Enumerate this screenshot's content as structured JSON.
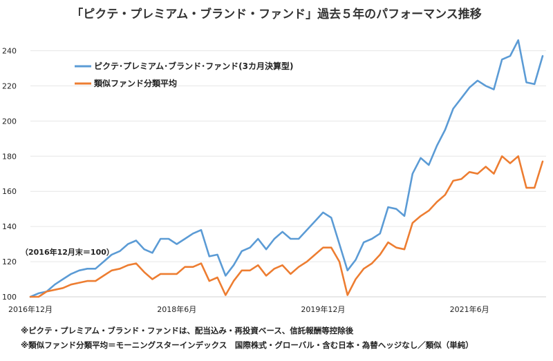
{
  "chart_data": {
    "type": "line",
    "title": "「ピクテ・プレミアム・ブランド・ファンド」過去５年のパフォーマンス推移",
    "base_note": "（2016年12月末＝100）",
    "x_tick_labels": [
      {
        "index": 0,
        "label": "2016年12月"
      },
      {
        "index": 18,
        "label": "2018年6月"
      },
      {
        "index": 36,
        "label": "2019年12月"
      },
      {
        "index": 54,
        "label": "2021年6月"
      }
    ],
    "ylim": [
      100,
      250
    ],
    "yticks": [
      100,
      120,
      140,
      160,
      180,
      200,
      220,
      240
    ],
    "legend_position": "top-left",
    "series": [
      {
        "name": "ピクテ･プレミアム･ブランド･ファンド(3カ月決算型)",
        "color": "#5b9bd5",
        "values": [
          100,
          102,
          103,
          107,
          110,
          113,
          115,
          116,
          116,
          120,
          124,
          126,
          130,
          132,
          127,
          125,
          133,
          133,
          130,
          133,
          136,
          138,
          123,
          124,
          112,
          118,
          126,
          128,
          133,
          127,
          133,
          137,
          133,
          133,
          138,
          143,
          148,
          145,
          130,
          115,
          121,
          131,
          133,
          136,
          151,
          150,
          146,
          170,
          179,
          175,
          186,
          195,
          207,
          213,
          219,
          223,
          220,
          218,
          235,
          237,
          246,
          222,
          221,
          237
        ]
      },
      {
        "name": "類似ファンド分類平均",
        "color": "#ed7d31",
        "values": [
          100,
          100,
          103,
          104,
          105,
          107,
          108,
          109,
          109,
          112,
          115,
          116,
          118,
          119,
          114,
          110,
          113,
          113,
          113,
          117,
          117,
          119,
          109,
          111,
          101,
          109,
          115,
          115,
          118,
          112,
          116,
          118,
          113,
          117,
          120,
          124,
          128,
          128,
          120,
          101,
          110,
          116,
          119,
          124,
          131,
          128,
          127,
          142,
          146,
          149,
          154,
          158,
          166,
          167,
          171,
          170,
          174,
          170,
          180,
          176,
          180,
          162,
          162,
          177
        ]
      }
    ]
  },
  "footnotes": [
    "※ピクテ・プレミアム・ブランド・ファンドは、配当込み・再投資ベース、信託報酬等控除後",
    "※類似ファンド分類平均＝モーニングスターインデックス　国際株式・グローバル・含む日本・為替ヘッジなし／類似（単純）"
  ]
}
